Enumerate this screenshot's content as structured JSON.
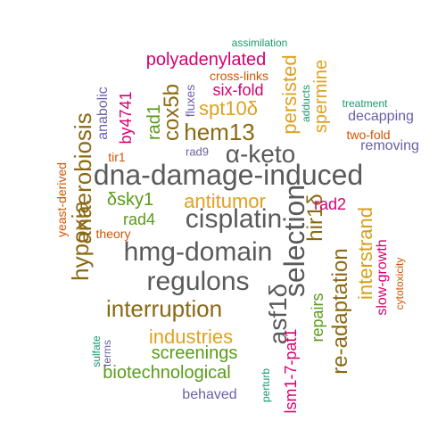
{
  "words": [
    {
      "text": "dna-damage-induced",
      "color": "#5a5a5a",
      "vertical": false
    },
    {
      "text": "cisplatin",
      "color": "#5a5a5a",
      "vertical": false
    },
    {
      "text": "hmg-domain",
      "color": "#5a5a5a",
      "vertical": false
    },
    {
      "text": "regulons",
      "color": "#5a5a5a",
      "vertical": false
    },
    {
      "text": "selection",
      "color": "#5a5a5a",
      "vertical": true
    },
    {
      "text": "α-keto",
      "color": "#5a5a5a",
      "vertical": false
    },
    {
      "text": "asf1δ",
      "color": "#5a5a5a",
      "vertical": true
    },
    {
      "text": "hypoxia",
      "color": "#8b6914",
      "vertical": true
    },
    {
      "text": "anaerobiosis",
      "color": "#8b6914",
      "vertical": true
    },
    {
      "text": "interruption",
      "color": "#8b6914",
      "vertical": false
    },
    {
      "text": "hem13",
      "color": "#8b6914",
      "vertical": false
    },
    {
      "text": "re-adaptation",
      "color": "#8b6914",
      "vertical": true
    },
    {
      "text": "interstrand",
      "color": "#d4a017",
      "vertical": true
    },
    {
      "text": "hir1δ",
      "color": "#8b6914",
      "vertical": true
    },
    {
      "text": "cox5b",
      "color": "#8b6914",
      "vertical": true
    },
    {
      "text": "industries",
      "color": "#e0a020",
      "vertical": false
    },
    {
      "text": "antitumor",
      "color": "#e0a020",
      "vertical": false
    },
    {
      "text": "spt10δ",
      "color": "#e0a020",
      "vertical": false
    },
    {
      "text": "persisted",
      "color": "#e0a020",
      "vertical": true
    },
    {
      "text": "spermine",
      "color": "#e0a020",
      "vertical": true
    },
    {
      "text": "biotechnological",
      "color": "#5a9a1a",
      "vertical": false
    },
    {
      "text": "screenings",
      "color": "#5a9a1a",
      "vertical": false
    },
    {
      "text": "δsky1",
      "color": "#5a9a1a",
      "vertical": false
    },
    {
      "text": "rad4",
      "color": "#5a9a1a",
      "vertical": false
    },
    {
      "text": "rad1",
      "color": "#5a9a1a",
      "vertical": true
    },
    {
      "text": "repairs",
      "color": "#5a9a1a",
      "vertical": true
    },
    {
      "text": "polyadenylated",
      "color": "#d6006e",
      "vertical": false
    },
    {
      "text": "six-fold",
      "color": "#d6006e",
      "vertical": false
    },
    {
      "text": "by4741",
      "color": "#d6006e",
      "vertical": true
    },
    {
      "text": "lsm1-7-pat1",
      "color": "#d6006e",
      "vertical": true
    },
    {
      "text": "rad2",
      "color": "#d6006e",
      "vertical": false
    },
    {
      "text": "slow-growth",
      "color": "#d6006e",
      "vertical": true
    },
    {
      "text": "decapping",
      "color": "#6a60a8",
      "vertical": false
    },
    {
      "text": "anabolic",
      "color": "#6a60a8",
      "vertical": true
    },
    {
      "text": "fluxes",
      "color": "#6a60a8",
      "vertical": true
    },
    {
      "text": "behaved",
      "color": "#6a60a8",
      "vertical": false
    },
    {
      "text": "removing",
      "color": "#6a60a8",
      "vertical": false
    },
    {
      "text": "rad9",
      "color": "#6a60a8",
      "vertical": false
    },
    {
      "text": "terms",
      "color": "#6a60a8",
      "vertical": true
    },
    {
      "text": "cross-links",
      "color": "#d35400",
      "vertical": false
    },
    {
      "text": "two-fold",
      "color": "#d35400",
      "vertical": false
    },
    {
      "text": "yeast-derived",
      "color": "#d35400",
      "vertical": true
    },
    {
      "text": "tir1",
      "color": "#d35400",
      "vertical": false
    },
    {
      "text": "theory",
      "color": "#d35400",
      "vertical": false
    },
    {
      "text": "cytotoxicity",
      "color": "#d35400",
      "vertical": true
    },
    {
      "text": "assimilation",
      "color": "#1a9a6a",
      "vertical": false
    },
    {
      "text": "treatment",
      "color": "#1a9a6a",
      "vertical": false
    },
    {
      "text": "adducts",
      "color": "#1a9a6a",
      "vertical": true
    },
    {
      "text": "sulfate",
      "color": "#1a9a6a",
      "vertical": true
    },
    {
      "text": "perturb",
      "color": "#1a9a6a",
      "vertical": true
    }
  ]
}
